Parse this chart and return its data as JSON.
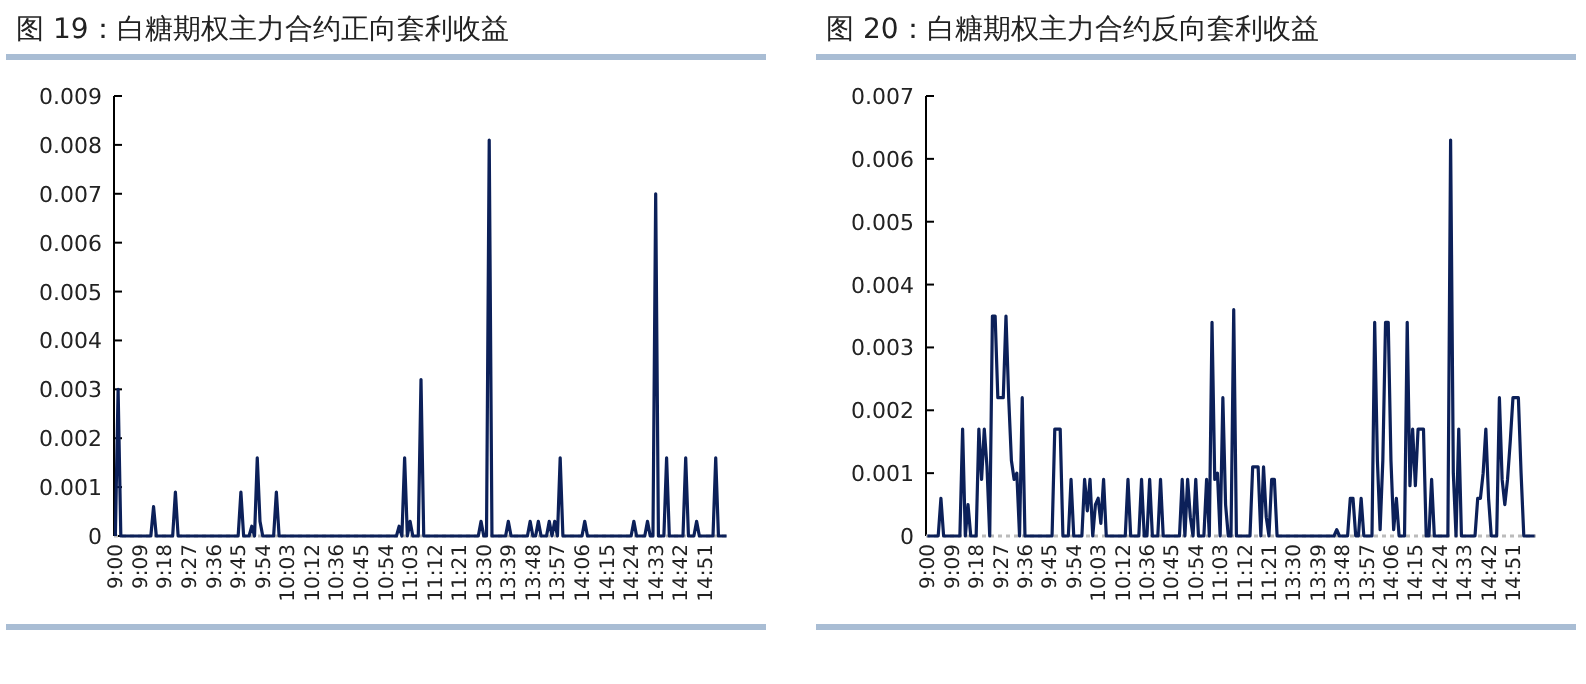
{
  "chart_data": [
    {
      "type": "line",
      "title": "图 19：白糖期权主力合约正向套利收益",
      "color": "#0c2059",
      "ylim": [
        0,
        0.009
      ],
      "yticks": [
        0,
        0.001,
        0.002,
        0.003,
        0.004,
        0.005,
        0.006,
        0.007,
        0.008,
        0.009
      ],
      "grid": false,
      "marker": "none",
      "line_style": "solid",
      "categories": [
        "9:00",
        null,
        null,
        null,
        null,
        null,
        null,
        null,
        null,
        "9:09",
        null,
        null,
        null,
        null,
        null,
        null,
        null,
        null,
        "9:18",
        null,
        null,
        null,
        null,
        null,
        null,
        null,
        null,
        "9:27",
        null,
        null,
        null,
        null,
        null,
        null,
        null,
        null,
        "9:36",
        null,
        null,
        null,
        null,
        null,
        null,
        null,
        null,
        "9:45",
        null,
        null,
        null,
        null,
        null,
        null,
        null,
        null,
        "9:54",
        null,
        null,
        null,
        null,
        null,
        null,
        null,
        null,
        "10:03",
        null,
        null,
        null,
        null,
        null,
        null,
        null,
        null,
        "10:12",
        null,
        null,
        null,
        null,
        null,
        null,
        null,
        null,
        "10:36",
        null,
        null,
        null,
        null,
        null,
        null,
        null,
        null,
        "10:45",
        null,
        null,
        null,
        null,
        null,
        null,
        null,
        null,
        "10:54",
        null,
        null,
        null,
        null,
        null,
        null,
        null,
        null,
        "11:03",
        null,
        null,
        null,
        null,
        null,
        null,
        null,
        null,
        "11:12",
        null,
        null,
        null,
        null,
        null,
        null,
        null,
        null,
        "11:21",
        null,
        null,
        null,
        null,
        null,
        null,
        null,
        null,
        "13:30",
        null,
        null,
        null,
        null,
        null,
        null,
        null,
        null,
        "13:39",
        null,
        null,
        null,
        null,
        null,
        null,
        null,
        null,
        "13:48",
        null,
        null,
        null,
        null,
        null,
        null,
        null,
        null,
        "13:57",
        null,
        null,
        null,
        null,
        null,
        null,
        null,
        null,
        "14:06",
        null,
        null,
        null,
        null,
        null,
        null,
        null,
        null,
        "14:15",
        null,
        null,
        null,
        null,
        null,
        null,
        null,
        null,
        "14:24",
        null,
        null,
        null,
        null,
        null,
        null,
        null,
        null,
        "14:33",
        null,
        null,
        null,
        null,
        null,
        null,
        null,
        null,
        "14:42",
        null,
        null,
        null,
        null,
        null,
        null,
        null,
        null,
        "14:51",
        null,
        null,
        null,
        null,
        null,
        null,
        null,
        null
      ],
      "values": [
        0,
        0.003,
        0,
        0,
        0,
        0,
        0,
        0,
        0,
        0,
        0,
        0,
        0,
        0,
        0.0006,
        0,
        0,
        0,
        0,
        0,
        0,
        0,
        0.0009,
        0,
        0,
        0,
        0,
        0,
        0,
        0,
        0,
        0,
        0,
        0,
        0,
        0,
        0,
        0,
        0,
        0,
        0,
        0,
        0,
        0,
        0,
        0,
        0.0009,
        0,
        0,
        0,
        0.0002,
        0,
        0.0016,
        0.0003,
        0,
        0,
        0,
        0,
        0,
        0.0009,
        0,
        0,
        0,
        0,
        0,
        0,
        0,
        0,
        0,
        0,
        0,
        0,
        0,
        0,
        0,
        0,
        0,
        0,
        0,
        0,
        0,
        0,
        0,
        0,
        0,
        0,
        0,
        0,
        0,
        0,
        0,
        0,
        0,
        0,
        0,
        0,
        0,
        0,
        0,
        0,
        0,
        0,
        0,
        0,
        0.0002,
        0,
        0.0016,
        0,
        0.0003,
        0,
        0,
        0,
        0.0032,
        0,
        0,
        0,
        0,
        0,
        0,
        0,
        0,
        0,
        0,
        0,
        0,
        0,
        0,
        0,
        0,
        0,
        0,
        0,
        0,
        0,
        0.0003,
        0,
        0,
        0.0081,
        0,
        0,
        0,
        0,
        0,
        0,
        0.0003,
        0,
        0,
        0,
        0,
        0,
        0,
        0,
        0.0003,
        0,
        0,
        0.0003,
        0,
        0,
        0,
        0.0003,
        0,
        0.0003,
        0,
        0.0016,
        0,
        0,
        0,
        0,
        0,
        0,
        0,
        0,
        0.0003,
        0,
        0,
        0,
        0,
        0,
        0,
        0,
        0,
        0,
        0,
        0,
        0,
        0,
        0,
        0,
        0,
        0,
        0.0003,
        0,
        0,
        0,
        0,
        0.0003,
        0,
        0,
        0.007,
        0,
        0,
        0,
        0.0016,
        0,
        0,
        0,
        0,
        0,
        0,
        0.0016,
        0,
        0,
        0,
        0.0003,
        0,
        0,
        0,
        0,
        0,
        0,
        0.0016,
        0,
        0,
        0,
        0
      ]
    },
    {
      "type": "line",
      "title": "图 20：白糖期权主力合约反向套利收益",
      "color": "#0c2059",
      "ylim": [
        0,
        0.007
      ],
      "yticks": [
        0,
        0.001,
        0.002,
        0.003,
        0.004,
        0.005,
        0.006,
        0.007
      ],
      "grid": false,
      "marker": "none",
      "line_style": "solid",
      "categories": [
        "9:00",
        null,
        null,
        null,
        null,
        null,
        null,
        null,
        null,
        "9:09",
        null,
        null,
        null,
        null,
        null,
        null,
        null,
        null,
        "9:18",
        null,
        null,
        null,
        null,
        null,
        null,
        null,
        null,
        "9:27",
        null,
        null,
        null,
        null,
        null,
        null,
        null,
        null,
        "9:36",
        null,
        null,
        null,
        null,
        null,
        null,
        null,
        null,
        "9:45",
        null,
        null,
        null,
        null,
        null,
        null,
        null,
        null,
        "9:54",
        null,
        null,
        null,
        null,
        null,
        null,
        null,
        null,
        "10:03",
        null,
        null,
        null,
        null,
        null,
        null,
        null,
        null,
        "10:12",
        null,
        null,
        null,
        null,
        null,
        null,
        null,
        null,
        "10:36",
        null,
        null,
        null,
        null,
        null,
        null,
        null,
        null,
        "10:45",
        null,
        null,
        null,
        null,
        null,
        null,
        null,
        null,
        "10:54",
        null,
        null,
        null,
        null,
        null,
        null,
        null,
        null,
        "11:03",
        null,
        null,
        null,
        null,
        null,
        null,
        null,
        null,
        "11:12",
        null,
        null,
        null,
        null,
        null,
        null,
        null,
        null,
        "11:21",
        null,
        null,
        null,
        null,
        null,
        null,
        null,
        null,
        "13:30",
        null,
        null,
        null,
        null,
        null,
        null,
        null,
        null,
        "13:39",
        null,
        null,
        null,
        null,
        null,
        null,
        null,
        null,
        "13:48",
        null,
        null,
        null,
        null,
        null,
        null,
        null,
        null,
        "13:57",
        null,
        null,
        null,
        null,
        null,
        null,
        null,
        null,
        "14:06",
        null,
        null,
        null,
        null,
        null,
        null,
        null,
        null,
        "14:15",
        null,
        null,
        null,
        null,
        null,
        null,
        null,
        null,
        "14:24",
        null,
        null,
        null,
        null,
        null,
        null,
        null,
        null,
        "14:33",
        null,
        null,
        null,
        null,
        null,
        null,
        null,
        null,
        "14:42",
        null,
        null,
        null,
        null,
        null,
        null,
        null,
        null,
        "14:51",
        null,
        null,
        null,
        null,
        null,
        null,
        null,
        null
      ],
      "values": [
        0,
        0,
        0,
        0,
        0,
        0.0006,
        0,
        0,
        0,
        0,
        0,
        0,
        0,
        0.0017,
        0,
        0.0005,
        0,
        0,
        0,
        0.0017,
        0.0009,
        0.0017,
        0.0011,
        0,
        0.0035,
        0.0035,
        0.0022,
        0.0022,
        0.0022,
        0.0035,
        0.0022,
        0.0012,
        0.0009,
        0.001,
        0,
        0.0022,
        0,
        0,
        0,
        0,
        0,
        0,
        0,
        0,
        0,
        0,
        0,
        0.0017,
        0.0017,
        0.0017,
        0,
        0,
        0,
        0.0009,
        0,
        0,
        0,
        0,
        0.0009,
        0.0004,
        0.0009,
        0,
        0.0005,
        0.0006,
        0.0002,
        0.0009,
        0,
        0,
        0,
        0,
        0,
        0,
        0,
        0,
        0.0009,
        0,
        0,
        0,
        0,
        0.0009,
        0,
        0,
        0.0009,
        0,
        0,
        0,
        0.0009,
        0,
        0,
        0,
        0,
        0,
        0,
        0,
        0.0009,
        0,
        0.0009,
        0.0003,
        0,
        0.0009,
        0,
        0,
        0,
        0.0009,
        0,
        0.0034,
        0.0009,
        0.001,
        0,
        0.0022,
        0.0005,
        0,
        0,
        0.0036,
        0,
        0,
        0,
        0,
        0,
        0,
        0.0011,
        0.0011,
        0.0011,
        0,
        0.0011,
        0.0003,
        0,
        0.0009,
        0.0009,
        0,
        0,
        0,
        0,
        0,
        0,
        0,
        0,
        0,
        0,
        0,
        0,
        0,
        0,
        0,
        0,
        0,
        0,
        0,
        0,
        0,
        0,
        0.0001,
        0,
        0,
        0,
        0,
        0.0006,
        0.0006,
        0,
        0,
        0.0006,
        0,
        0,
        0,
        0,
        0.0034,
        0.0012,
        0.0001,
        0.0012,
        0.0034,
        0.0034,
        0.0012,
        0.0001,
        0.0006,
        0,
        0,
        0,
        0.0034,
        0.0008,
        0.0017,
        0.0008,
        0.0017,
        0.0017,
        0.0017,
        0,
        0,
        0.0009,
        0,
        0,
        0,
        0,
        0,
        0,
        0.0063,
        0.001,
        0,
        0.0017,
        0,
        0,
        0,
        0,
        0,
        0,
        0.0006,
        0.0006,
        0.001,
        0.0017,
        0.0006,
        0,
        0,
        0,
        0.0022,
        0.0009,
        0.0005,
        0.0009,
        0.0015,
        0.0022,
        0.0022,
        0.0022,
        0.001,
        0,
        0,
        0,
        0,
        0
      ]
    }
  ]
}
